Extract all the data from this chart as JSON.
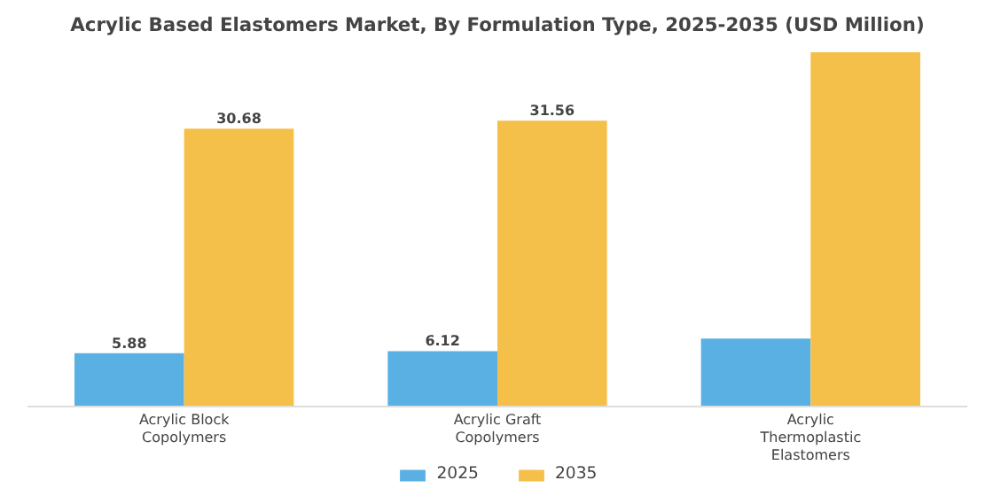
{
  "chart_data": {
    "type": "bar",
    "title": "Acrylic Based Elastomers Market, By Formulation Type, 2025-2035 (USD Million)",
    "categories": [
      "Acrylic Block Copolymers",
      "Acrylic Graft Copolymers",
      "Acrylic Thermoplastic Elastomers"
    ],
    "series": [
      {
        "name": "2025",
        "color": "#5ab0e3",
        "values": [
          5.88,
          6.12,
          7.5
        ],
        "value_labels": [
          "5.88",
          "6.12",
          null
        ]
      },
      {
        "name": "2035",
        "color": "#f5c04a",
        "values": [
          30.68,
          31.56,
          39.1
        ],
        "value_labels": [
          "30.68",
          "31.56",
          null
        ]
      }
    ],
    "tick_labels": "x",
    "grid": false,
    "legend": "bottom"
  }
}
